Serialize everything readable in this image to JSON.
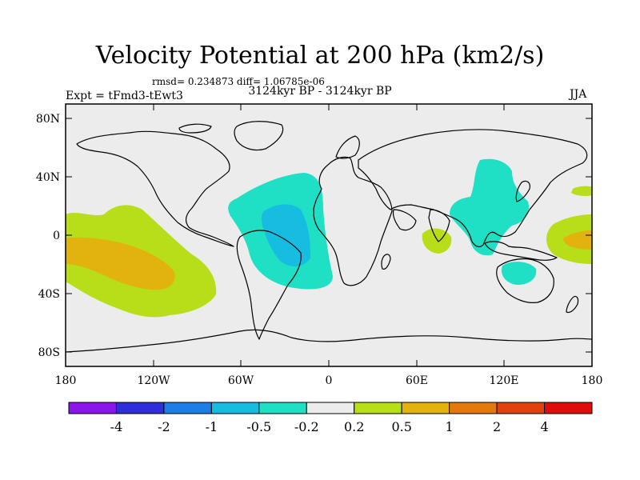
{
  "title": "Velocity Potential at 200 hPa (km2/s)",
  "stats": "rmsd= 0.234873 diff= 1.06785e-06",
  "subtitle": "3124kyr BP - 3124kyr BP",
  "experiment": "Expt = tFmd3-tEwt3",
  "season": "JJA",
  "lat_ticks": [
    "80N",
    "40N",
    "0",
    "40S",
    "80S"
  ],
  "lon_ticks": [
    "180",
    "120W",
    "60W",
    "0",
    "60E",
    "120E",
    "180"
  ],
  "colorbar": {
    "colors": [
      "#8a16e8",
      "#2e2fd8",
      "#1f7ee3",
      "#16bde0",
      "#1fe0c4",
      "#ececec",
      "#b7de18",
      "#e2b20f",
      "#e37a0d",
      "#e0420e",
      "#e00c0c"
    ],
    "labels": [
      "-4",
      "-2",
      "-1",
      "-0.5",
      "-0.2",
      "0.2",
      "0.5",
      "1",
      "2",
      "4"
    ]
  },
  "colors": {
    "background": "#ececec",
    "positive_low": "#b7de18",
    "positive_mid": "#e2b20f",
    "negative_low": "#1fe0c4",
    "negative_mid": "#16bde0"
  }
}
